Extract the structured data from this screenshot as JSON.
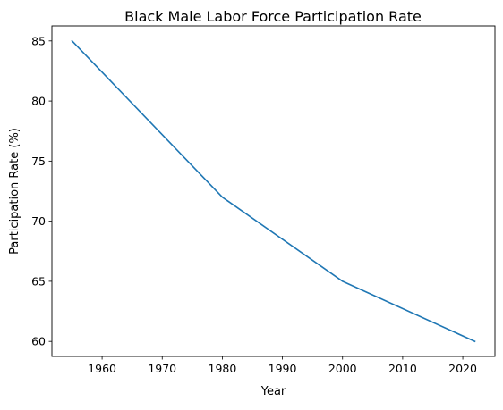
{
  "chart_data": {
    "type": "line",
    "title": "Black Male Labor Force Participation Rate",
    "xlabel": "Year",
    "ylabel": "Participation Rate (%)",
    "x": [
      1955,
      1980,
      2000,
      2022
    ],
    "series": [
      {
        "values": [
          85,
          72,
          65,
          60
        ],
        "color": "#1f77b4"
      }
    ],
    "xlim": [
      1951.65,
      2025.35
    ],
    "ylim": [
      58.75,
      86.25
    ],
    "xticks": [
      1960,
      1970,
      1980,
      1990,
      2000,
      2010,
      2020
    ],
    "yticks": [
      60,
      65,
      70,
      75,
      80,
      85
    ],
    "grid": false,
    "legend": "none"
  }
}
